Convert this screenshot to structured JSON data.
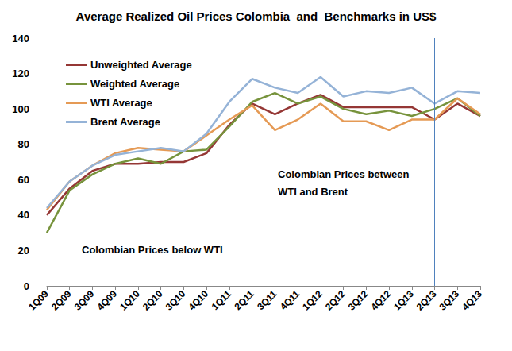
{
  "chart_data": {
    "type": "line",
    "title": "Average Realized Oil Prices Colombia  and  Benchmarks in US$",
    "categories": [
      "1Q09",
      "2Q09",
      "3Q09",
      "4Q09",
      "1Q10",
      "2Q10",
      "3Q10",
      "4Q10",
      "1Q11",
      "2Q11",
      "3Q11",
      "4Q11",
      "1Q12",
      "2Q12",
      "3Q12",
      "4Q12",
      "1Q13",
      "2Q13",
      "3Q13",
      "4Q13"
    ],
    "series": [
      {
        "name": "Unweighted Average",
        "color": "#953735",
        "values": [
          40,
          55,
          65,
          69,
          69,
          70,
          70,
          75,
          91,
          103,
          97,
          103,
          108,
          101,
          101,
          101,
          101,
          94,
          103,
          96
        ]
      },
      {
        "name": "Weighted Average",
        "color": "#77933c",
        "values": [
          30,
          54,
          63,
          69,
          72,
          69,
          76,
          77,
          90,
          104,
          109,
          103,
          107,
          100,
          97,
          99,
          96,
          100,
          106,
          96
        ]
      },
      {
        "name": "WTI Average",
        "color": "#e59a55",
        "values": [
          43,
          59,
          68,
          75,
          78,
          77,
          76,
          85,
          94,
          102,
          88,
          94,
          103,
          93,
          93,
          88,
          94,
          94,
          106,
          97
        ]
      },
      {
        "name": "Brent Average",
        "color": "#95b3d7",
        "values": [
          44,
          59,
          68,
          74,
          76,
          78,
          76,
          86,
          104,
          117,
          112,
          109,
          118,
          107,
          110,
          109,
          112,
          103,
          110,
          109
        ]
      }
    ],
    "ylim": [
      0,
      140
    ],
    "yticks": [
      0,
      20,
      40,
      60,
      80,
      100,
      120,
      140
    ],
    "grid": false,
    "legend": "top-left",
    "reference_lines": [
      {
        "x": "2Q11"
      },
      {
        "x": "2Q13"
      }
    ],
    "annotations": [
      {
        "text": "Colombian Prices between WTI and Brent"
      },
      {
        "text": "Colombian Prices below WTI"
      }
    ]
  }
}
